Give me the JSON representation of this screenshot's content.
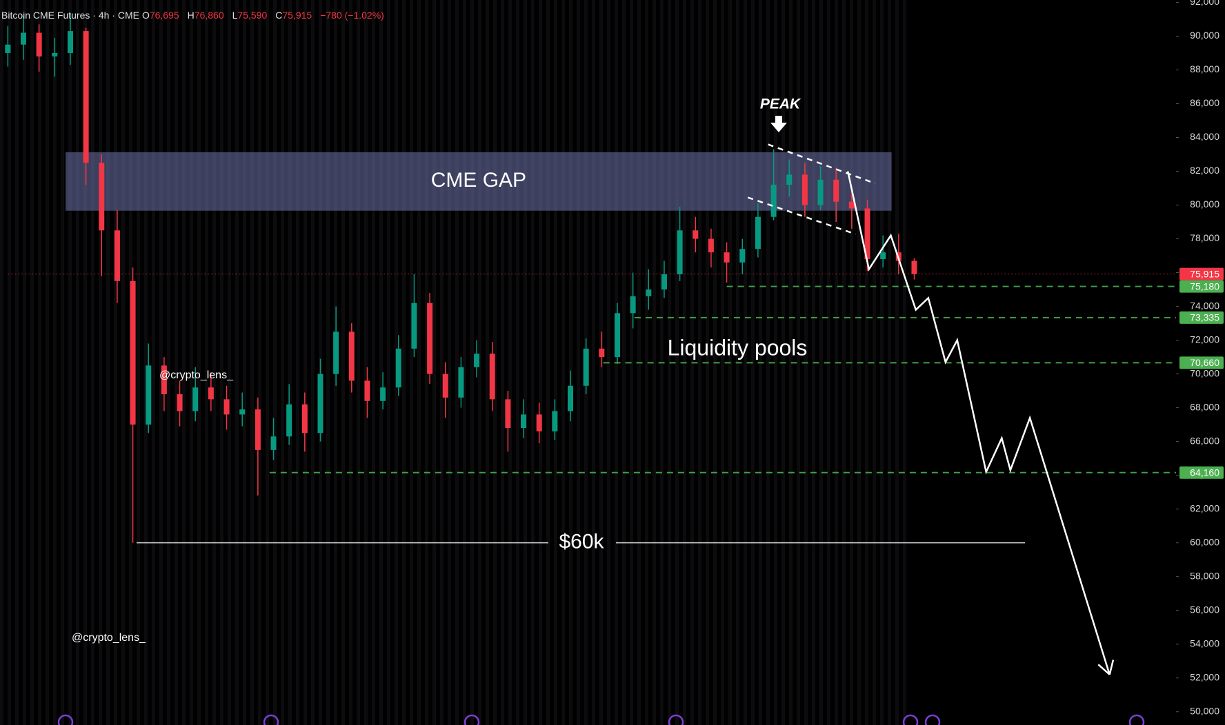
{
  "chart_data": {
    "type": "candlestick",
    "header": {
      "title": "Bitcoin CME Futures · 4h · CME",
      "fields": [
        {
          "name": "O",
          "value": 76695,
          "label": "76,695"
        },
        {
          "name": "H",
          "value": 76860,
          "label": "76,860"
        },
        {
          "name": "L",
          "value": 75590,
          "label": "75,590"
        },
        {
          "name": "C",
          "value": 75915,
          "label": "75,915"
        },
        {
          "name": "",
          "value": -780,
          "label": "−780 (−1.02%)"
        }
      ]
    },
    "open": [
      89000,
      89500,
      90200,
      88800,
      89000,
      90300,
      82500,
      78500,
      75500,
      67000,
      70500,
      68800,
      67800,
      69200,
      68500,
      67600,
      67900,
      65500,
      66300,
      68200,
      66500,
      70000,
      72500,
      69600,
      68400,
      69200,
      71500,
      74200,
      70000,
      68600,
      70400,
      71200,
      68500,
      66800,
      67600,
      66600,
      67800,
      69300,
      71500,
      71000,
      73600,
      74600,
      75000,
      75900,
      78500,
      78000,
      77200,
      76600,
      77400,
      79300,
      81200,
      81800,
      80000,
      81500,
      80200,
      79800,
      76800,
      77200,
      76695
    ],
    "high": [
      90600,
      91200,
      90700,
      89900,
      91300,
      90500,
      83000,
      79700,
      76300,
      71800,
      71000,
      69600,
      70400,
      70100,
      69300,
      68900,
      68600,
      67400,
      69400,
      68900,
      70900,
      74000,
      73000,
      70400,
      70100,
      72300,
      75900,
      74800,
      70700,
      71000,
      72000,
      71900,
      69000,
      68500,
      68300,
      68500,
      70200,
      72100,
      72500,
      74200,
      76000,
      76200,
      76700,
      79900,
      79300,
      78600,
      77800,
      78000,
      80100,
      83300,
      82700,
      82500,
      82300,
      82200,
      80800,
      80300,
      78200,
      78300,
      76860
    ],
    "low": [
      88200,
      88600,
      87900,
      87600,
      88300,
      81200,
      75800,
      74200,
      60000,
      66500,
      67800,
      66900,
      67200,
      67800,
      66700,
      66900,
      62800,
      64900,
      65800,
      65400,
      66000,
      69300,
      68900,
      67400,
      67900,
      68700,
      71000,
      69400,
      67400,
      68000,
      69800,
      67800,
      65400,
      66200,
      65900,
      66100,
      67200,
      68800,
      70400,
      70600,
      72700,
      73800,
      74500,
      75500,
      77200,
      76300,
      75400,
      75900,
      76900,
      79100,
      80500,
      79300,
      79700,
      79000,
      78600,
      76100,
      76300,
      75900,
      75590
    ],
    "close": [
      89500,
      90200,
      88800,
      89000,
      90300,
      82500,
      78500,
      75500,
      67000,
      70500,
      68800,
      67800,
      69200,
      68500,
      67600,
      67900,
      65500,
      66300,
      68200,
      66500,
      70000,
      72500,
      69600,
      68400,
      69200,
      71500,
      74200,
      70000,
      68600,
      70400,
      71200,
      68500,
      66800,
      67600,
      66600,
      67800,
      69300,
      71500,
      71000,
      73600,
      74600,
      75000,
      75900,
      78500,
      78000,
      77200,
      76600,
      77400,
      79300,
      81200,
      81800,
      80000,
      81500,
      80200,
      79800,
      76800,
      77200,
      76695,
      75915
    ],
    "up_color": "#089981",
    "down_color": "#f23645",
    "xlim": [
      -0.5,
      74.75
    ],
    "ylim": [
      49215,
      92140
    ],
    "yticks": [
      {
        "value": 50000,
        "label": "50,000"
      },
      {
        "value": 52000,
        "label": "52,000"
      },
      {
        "value": 54000,
        "label": "54,000"
      },
      {
        "value": 56000,
        "label": "56,000"
      },
      {
        "value": 58000,
        "label": "58,000"
      },
      {
        "value": 60000,
        "label": "60,000"
      },
      {
        "value": 62000,
        "label": "62,000"
      },
      {
        "value": 64000,
        "label": "64,000"
      },
      {
        "value": 66000,
        "label": "66,000"
      },
      {
        "value": 68000,
        "label": "68,000"
      },
      {
        "value": 70000,
        "label": "70,000"
      },
      {
        "value": 72000,
        "label": "72,000"
      },
      {
        "value": 74000,
        "label": "74,000"
      },
      {
        "value": 76000,
        "label": "76,000"
      },
      {
        "value": 78000,
        "label": "78,000"
      },
      {
        "value": 80000,
        "label": "80,000"
      },
      {
        "value": 82000,
        "label": "82,000"
      },
      {
        "value": 84000,
        "label": "84,000"
      },
      {
        "value": 86000,
        "label": "86,000"
      },
      {
        "value": 88000,
        "label": "88,000"
      },
      {
        "value": 90000,
        "label": "90,000"
      },
      {
        "value": 92000,
        "label": "92,000"
      }
    ],
    "levels": [
      {
        "value": 75915,
        "label": "75,915",
        "color": "#f23645"
      },
      {
        "value": 75180,
        "label": "75,180",
        "color": "#4caf50"
      },
      {
        "value": 73335,
        "label": "73,335",
        "color": "#4caf50"
      },
      {
        "value": 70660,
        "label": "70,660",
        "color": "#4caf50"
      },
      {
        "value": 64160,
        "label": "64,160",
        "color": "#4caf50"
      }
    ],
    "gap": {
      "label": "CME GAP",
      "x": [
        3.7,
        56.55
      ],
      "values": [
        79665,
        83130
      ]
    },
    "channel": {
      "upper": {
        "x": [
          48.65,
          55.5
        ],
        "values": [
          83590,
          81280
        ]
      },
      "lower": {
        "x": [
          47.35,
          54.25
        ],
        "values": [
          80450,
          78280
        ]
      }
    },
    "projection": {
      "x": [
        53.75,
        55.1,
        56.5,
        58.1,
        58.9,
        60,
        60.75,
        62.6,
        63.6,
        64.15,
        65.4,
        70.5
      ],
      "values": [
        82000,
        76200,
        78200,
        73800,
        74500,
        70700,
        72000,
        64200,
        66200,
        64300,
        67400,
        52200
      ]
    },
    "support": {
      "label": "$60k",
      "value": 60000
    },
    "annotations": {
      "peak": "PEAK",
      "liquidity": "Liquidity pools",
      "watermark": "@crypto_lens_"
    }
  }
}
